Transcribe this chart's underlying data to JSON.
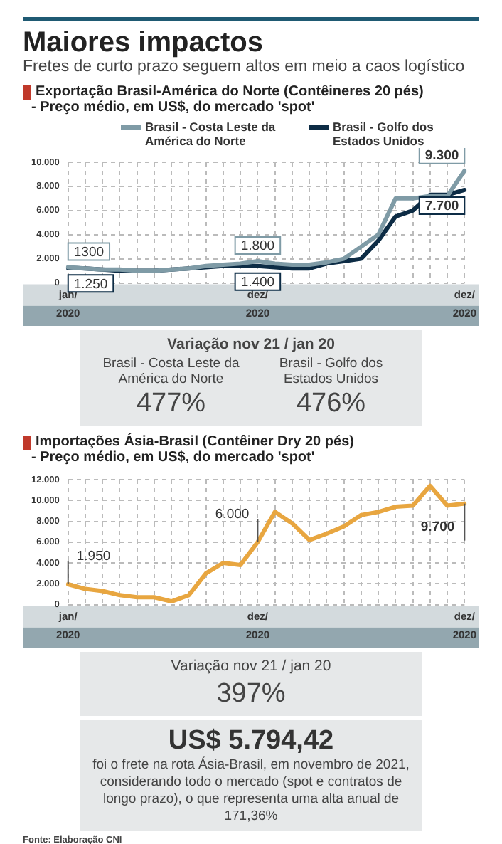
{
  "chart_data": [
    {
      "type": "other",
      "title": "Maiores impactos",
      "subtitle": "Fretes de curto prazo seguem altos em meio a caos logístico"
    },
    {
      "type": "line",
      "title": "Exportação Brasil-América do Norte (Contêineres 20 pés)",
      "subtitle": "- Preço médio, em US$, do mercado 'spot'",
      "categories": [
        "jan/ 2020",
        null,
        null,
        null,
        null,
        null,
        null,
        null,
        null,
        null,
        null,
        "dez/ 2020",
        null,
        null,
        null,
        null,
        null,
        null,
        null,
        null,
        null,
        null,
        null,
        "dez/ 2020"
      ],
      "series": [
        {
          "name": "Brasil - Costa Leste da América do Norte",
          "color": "#7f9ba6",
          "values": [
            1300,
            1200,
            1100,
            1100,
            1000,
            1000,
            1100,
            1200,
            1400,
            1500,
            1600,
            1800,
            1600,
            1500,
            1500,
            1700,
            2000,
            3000,
            4000,
            7000,
            7000,
            7200,
            7200,
            9300
          ],
          "value_labels": [
            "1300",
            null,
            null,
            null,
            null,
            null,
            null,
            null,
            null,
            null,
            null,
            "1.800",
            null,
            null,
            null,
            null,
            null,
            null,
            null,
            null,
            null,
            null,
            null,
            "9.300"
          ]
        },
        {
          "name": "Brasil - Golfo dos Estados Unidos",
          "color": "#0d2c45",
          "values": [
            1250,
            1200,
            1100,
            1000,
            1000,
            1000,
            1100,
            1200,
            1300,
            1400,
            1400,
            1400,
            1300,
            1200,
            1200,
            1600,
            1800,
            2000,
            3500,
            5500,
            6000,
            7300,
            7300,
            7700
          ],
          "value_labels": [
            "1.250",
            null,
            null,
            null,
            null,
            null,
            null,
            null,
            null,
            null,
            null,
            "1.400",
            null,
            null,
            null,
            null,
            null,
            null,
            null,
            null,
            null,
            null,
            null,
            "7.700"
          ]
        }
      ],
      "ylim": [
        0,
        10000
      ],
      "yticks": [
        {
          "value": 0,
          "label": "0"
        },
        {
          "value": 2000,
          "label": "2.000"
        },
        {
          "value": 4000,
          "label": "4.000"
        },
        {
          "value": 6000,
          "label": "6.000"
        },
        {
          "value": 8000,
          "label": "8.000"
        },
        {
          "value": 10000,
          "label": "10.000"
        }
      ],
      "grid": true,
      "legend": "top right"
    },
    {
      "type": "other",
      "title": "Variação nov 21 / jan 20",
      "categories": [
        "Brasil - Costa Leste da América do Norte",
        "Brasil - Golfo dos Estados Unidos"
      ],
      "annotations": [
        "477%",
        "476%"
      ]
    },
    {
      "type": "line",
      "title": "Importações Ásia-Brasil (Contêiner Dry 20 pés)",
      "subtitle": "- Preço médio, em US$, do mercado 'spot'",
      "categories": [
        "jan/ 2020",
        null,
        null,
        null,
        null,
        null,
        null,
        null,
        null,
        null,
        null,
        "dez/ 2020",
        null,
        null,
        null,
        null,
        null,
        null,
        null,
        null,
        null,
        null,
        null,
        "dez/ 2020"
      ],
      "series": [
        {
          "color": "#e8a640",
          "values": [
            1950,
            1500,
            1300,
            900,
            700,
            700,
            300,
            900,
            3000,
            4000,
            3800,
            6000,
            8900,
            7800,
            6200,
            6800,
            7500,
            8600,
            8900,
            9400,
            9500,
            11400,
            9500,
            9700
          ],
          "value_labels": [
            "1.950",
            null,
            null,
            null,
            null,
            null,
            null,
            null,
            null,
            null,
            null,
            "6.000",
            null,
            null,
            null,
            null,
            null,
            null,
            null,
            null,
            null,
            null,
            null,
            "9.700"
          ]
        }
      ],
      "ylim": [
        0,
        12000
      ],
      "yticks": [
        {
          "value": 0,
          "label": "0"
        },
        {
          "value": 2000,
          "label": "2.000"
        },
        {
          "value": 4000,
          "label": "4.000"
        },
        {
          "value": 6000,
          "label": "6.000"
        },
        {
          "value": 8000,
          "label": "8.000"
        },
        {
          "value": 10000,
          "label": "10.000"
        },
        {
          "value": 12000,
          "label": "12.000"
        }
      ],
      "grid": true
    },
    {
      "type": "other",
      "title": "Variação nov 21 / jan 20",
      "annotations": [
        "397%"
      ]
    },
    {
      "type": "other",
      "title": "US$ 5.794,42",
      "subtitle": "foi o frete na rota Ásia-Brasil, em novembro de 2021, considerando todo o mercado (spot e contratos de longo prazo), o que representa uma alta anual de 171,36%",
      "annotations": [
        "Fonte: Elaboração CNI"
      ]
    }
  ]
}
